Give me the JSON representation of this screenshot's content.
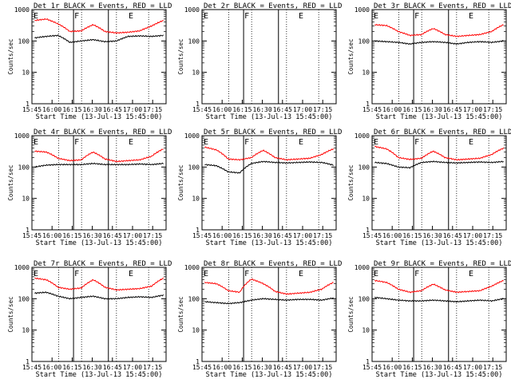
{
  "figure": {
    "background": "#ffffff",
    "colors": {
      "events": "#000000",
      "lld": "#ff0000",
      "frame": "#000000"
    }
  },
  "chart_data": [
    {
      "type": "line",
      "title": "Det 1r BLACK = Events, RED = LLD",
      "xlabel": "Start Time (13-Jul-13 15:45:00)",
      "ylabel": "Counts/sec",
      "ylim": [
        1,
        1000
      ],
      "yscale": "log",
      "xlim": [
        "15:45",
        "17:25"
      ],
      "yticks": [
        "1",
        "10",
        "100",
        "1000"
      ],
      "xticks": [
        "15:45",
        "16:00",
        "16:15",
        "16:30",
        "16:45",
        "17:00",
        "17:15"
      ],
      "series": [
        {
          "name": "Events",
          "color": "#000000",
          "values_approx": [
            125,
            140,
            150,
            90,
            100,
            110,
            95,
            100,
            140,
            145,
            140,
            150
          ]
        },
        {
          "name": "LLD",
          "color": "#ff0000",
          "values_approx": [
            450,
            500,
            350,
            200,
            210,
            330,
            200,
            180,
            190,
            210,
            300,
            450
          ]
        }
      ],
      "markers": [
        {
          "label": "E"
        },
        {
          "label": "F"
        },
        {
          "label": "E"
        }
      ]
    },
    {
      "type": "line",
      "title": "Det 2r BLACK = Events, RED = LLD",
      "xlabel": "Start Time (13-Jul-13 15:45:00)",
      "ylabel": "Counts/sec",
      "ylim": [
        1,
        1000
      ],
      "yscale": "log",
      "xlim": [
        "15:45",
        "17:25"
      ],
      "yticks": [
        "1",
        "10",
        "100",
        "1000"
      ],
      "xticks": [
        "15:45",
        "16:00",
        "16:15",
        "16:30",
        "16:45",
        "17:00",
        "17:15"
      ],
      "series": [],
      "markers": [
        {
          "label": "E"
        },
        {
          "label": "F"
        },
        {
          "label": "E"
        }
      ]
    },
    {
      "type": "line",
      "title": "Det 3r BLACK = Events, RED = LLD",
      "xlabel": "Start Time (13-Jul-13 15:45:00)",
      "ylabel": "Counts/sec",
      "ylim": [
        1,
        1000
      ],
      "yscale": "log",
      "xlim": [
        "15:45",
        "17:25"
      ],
      "yticks": [
        "1",
        "10",
        "100",
        "1000"
      ],
      "xticks": [
        "15:45",
        "16:00",
        "16:15",
        "16:30",
        "16:45",
        "17:00",
        "17:15"
      ],
      "series": [
        {
          "name": "Events",
          "color": "#000000",
          "values_approx": [
            100,
            95,
            90,
            80,
            90,
            95,
            90,
            80,
            90,
            95,
            90,
            100
          ]
        },
        {
          "name": "LLD",
          "color": "#ff0000",
          "values_approx": [
            330,
            310,
            200,
            150,
            160,
            250,
            160,
            140,
            150,
            160,
            200,
            330
          ]
        }
      ],
      "markers": [
        {
          "label": "E"
        },
        {
          "label": "F"
        },
        {
          "label": "E"
        }
      ]
    },
    {
      "type": "line",
      "title": "Det 4r BLACK = Events, RED = LLD",
      "xlabel": "Start Time (13-Jul-13 15:45:00)",
      "ylabel": "Counts/sec",
      "ylim": [
        1,
        1000
      ],
      "yscale": "log",
      "xlim": [
        "15:45",
        "17:25"
      ],
      "yticks": [
        "1",
        "10",
        "100",
        "1000"
      ],
      "xticks": [
        "15:45",
        "16:00",
        "16:15",
        "16:30",
        "16:45",
        "17:00",
        "17:15"
      ],
      "series": [
        {
          "name": "Events",
          "color": "#000000",
          "values_approx": [
            100,
            115,
            120,
            120,
            120,
            130,
            120,
            120,
            120,
            125,
            120,
            130
          ]
        },
        {
          "name": "LLD",
          "color": "#ff0000",
          "values_approx": [
            320,
            300,
            190,
            160,
            170,
            300,
            180,
            150,
            160,
            170,
            220,
            380
          ]
        }
      ],
      "markers": [
        {
          "label": "E"
        },
        {
          "label": "F"
        },
        {
          "label": "E"
        }
      ]
    },
    {
      "type": "line",
      "title": "Det 5r BLACK = Events, RED = LLD",
      "xlabel": "Start Time (13-Jul-13 15:45:00)",
      "ylabel": "Counts/sec",
      "ylim": [
        1,
        1000
      ],
      "yscale": "log",
      "xlim": [
        "15:45",
        "17:25"
      ],
      "yticks": [
        "1",
        "10",
        "100",
        "1000"
      ],
      "xticks": [
        "15:45",
        "16:00",
        "16:15",
        "16:30",
        "16:45",
        "17:00",
        "17:15"
      ],
      "series": [
        {
          "name": "Events",
          "color": "#000000",
          "values_approx": [
            120,
            110,
            70,
            65,
            130,
            150,
            140,
            135,
            140,
            145,
            140,
            115
          ]
        },
        {
          "name": "LLD",
          "color": "#ff0000",
          "values_approx": [
            430,
            350,
            180,
            170,
            200,
            340,
            200,
            170,
            180,
            190,
            250,
            380
          ]
        }
      ],
      "markers": [
        {
          "label": "E"
        },
        {
          "label": "F"
        },
        {
          "label": "E"
        }
      ]
    },
    {
      "type": "line",
      "title": "Det 6r BLACK = Events, RED = LLD",
      "xlabel": "Start Time (13-Jul-13 15:45:00)",
      "ylabel": "Counts/sec",
      "ylim": [
        1,
        1000
      ],
      "yscale": "log",
      "xlim": [
        "15:45",
        "17:25"
      ],
      "yticks": [
        "1",
        "10",
        "100",
        "1000"
      ],
      "xticks": [
        "15:45",
        "16:00",
        "16:15",
        "16:30",
        "16:45",
        "17:00",
        "17:15"
      ],
      "series": [
        {
          "name": "Events",
          "color": "#000000",
          "values_approx": [
            140,
            130,
            100,
            95,
            140,
            150,
            140,
            135,
            140,
            145,
            140,
            150
          ]
        },
        {
          "name": "LLD",
          "color": "#ff0000",
          "values_approx": [
            450,
            380,
            200,
            175,
            190,
            320,
            200,
            170,
            180,
            190,
            250,
            400
          ]
        }
      ],
      "markers": [
        {
          "label": "E"
        },
        {
          "label": "F"
        },
        {
          "label": "E"
        }
      ]
    },
    {
      "type": "line",
      "title": "Det 7r BLACK = Events, RED = LLD",
      "xlabel": "Start Time (13-Jul-13 15:45:00)",
      "ylabel": "Counts/sec",
      "ylim": [
        1,
        1000
      ],
      "yscale": "log",
      "xlim": [
        "15:45",
        "17:25"
      ],
      "yticks": [
        "1",
        "10",
        "100",
        "1000"
      ],
      "xticks": [
        "15:45",
        "16:00",
        "16:15",
        "16:30",
        "16:45",
        "17:00",
        "17:15"
      ],
      "series": [
        {
          "name": "Events",
          "color": "#000000",
          "values_approx": [
            150,
            160,
            120,
            100,
            110,
            120,
            100,
            100,
            110,
            115,
            110,
            130
          ]
        },
        {
          "name": "LLD",
          "color": "#ff0000",
          "values_approx": [
            450,
            400,
            230,
            200,
            220,
            400,
            230,
            190,
            200,
            210,
            250,
            450
          ]
        }
      ],
      "markers": [
        {
          "label": "E"
        },
        {
          "label": "F"
        },
        {
          "label": "E"
        }
      ]
    },
    {
      "type": "line",
      "title": "Det 8r BLACK = Events, RED = LLD",
      "xlabel": "Start Time (13-Jul-13 15:45:00)",
      "ylabel": "Counts/sec",
      "ylim": [
        1,
        1000
      ],
      "yscale": "log",
      "xlim": [
        "15:45",
        "17:25"
      ],
      "yticks": [
        "1",
        "10",
        "100",
        "1000"
      ],
      "xticks": [
        "15:45",
        "16:00",
        "16:15",
        "16:30",
        "16:45",
        "17:00",
        "17:15"
      ],
      "series": [
        {
          "name": "Events",
          "color": "#000000",
          "values_approx": [
            80,
            75,
            70,
            75,
            90,
            100,
            95,
            90,
            95,
            95,
            90,
            105
          ]
        },
        {
          "name": "LLD",
          "color": "#ff0000",
          "values_approx": [
            330,
            300,
            180,
            160,
            420,
            300,
            170,
            140,
            150,
            160,
            200,
            330
          ]
        }
      ],
      "markers": [
        {
          "label": "E"
        },
        {
          "label": "F"
        },
        {
          "label": "E"
        }
      ]
    },
    {
      "type": "line",
      "title": "Det 9r BLACK = Events, RED = LLD",
      "xlabel": "Start Time (13-Jul-13 15:45:00)",
      "ylabel": "Counts/sec",
      "ylim": [
        1,
        1000
      ],
      "yscale": "log",
      "xlim": [
        "15:45",
        "17:25"
      ],
      "yticks": [
        "1",
        "10",
        "100",
        "1000"
      ],
      "xticks": [
        "15:45",
        "16:00",
        "16:15",
        "16:30",
        "16:45",
        "17:00",
        "17:15"
      ],
      "series": [
        {
          "name": "Events",
          "color": "#000000",
          "values_approx": [
            110,
            100,
            90,
            85,
            85,
            90,
            85,
            80,
            85,
            90,
            85,
            100
          ]
        },
        {
          "name": "LLD",
          "color": "#ff0000",
          "values_approx": [
            380,
            330,
            200,
            160,
            180,
            290,
            190,
            160,
            170,
            180,
            250,
            380
          ]
        }
      ],
      "markers": [
        {
          "label": "E"
        },
        {
          "label": "F"
        },
        {
          "label": "E"
        }
      ]
    }
  ]
}
